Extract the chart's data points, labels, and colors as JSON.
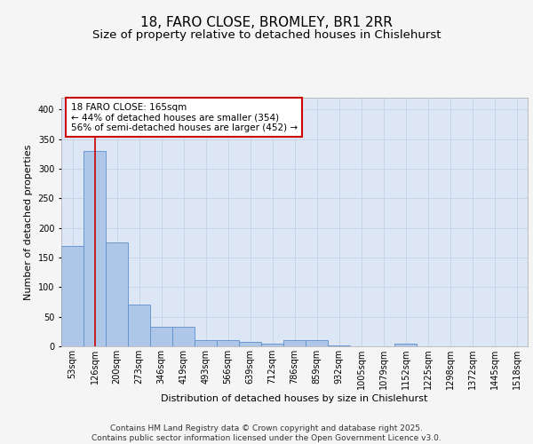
{
  "title_line1": "18, FARO CLOSE, BROMLEY, BR1 2RR",
  "title_line2": "Size of property relative to detached houses in Chislehurst",
  "xlabel": "Distribution of detached houses by size in Chislehurst",
  "ylabel": "Number of detached properties",
  "bar_labels": [
    "53sqm",
    "126sqm",
    "200sqm",
    "273sqm",
    "346sqm",
    "419sqm",
    "493sqm",
    "566sqm",
    "639sqm",
    "712sqm",
    "786sqm",
    "859sqm",
    "932sqm",
    "1005sqm",
    "1079sqm",
    "1152sqm",
    "1225sqm",
    "1298sqm",
    "1372sqm",
    "1445sqm",
    "1518sqm"
  ],
  "bar_values": [
    170,
    330,
    175,
    70,
    33,
    33,
    10,
    10,
    7,
    5,
    10,
    10,
    2,
    0,
    0,
    5,
    0,
    0,
    0,
    0,
    0
  ],
  "bar_color": "#aec6e8",
  "bar_edge_color": "#5b8fcc",
  "property_line_x": 1.0,
  "annotation_text": "18 FARO CLOSE: 165sqm\n← 44% of detached houses are smaller (354)\n56% of semi-detached houses are larger (452) →",
  "annotation_box_color": "#ffffff",
  "annotation_box_edge": "#cc0000",
  "vline_color": "#cc0000",
  "ylim": [
    0,
    420
  ],
  "yticks": [
    0,
    50,
    100,
    150,
    200,
    250,
    300,
    350,
    400
  ],
  "grid_color": "#c8d4e8",
  "background_color": "#dde6f5",
  "fig_background": "#f5f5f5",
  "footer_line1": "Contains HM Land Registry data © Crown copyright and database right 2025.",
  "footer_line2": "Contains public sector information licensed under the Open Government Licence v3.0.",
  "title_fontsize": 11,
  "subtitle_fontsize": 9.5,
  "axis_label_fontsize": 8,
  "tick_fontsize": 7,
  "footer_fontsize": 6.5,
  "annotation_fontsize": 7.5
}
